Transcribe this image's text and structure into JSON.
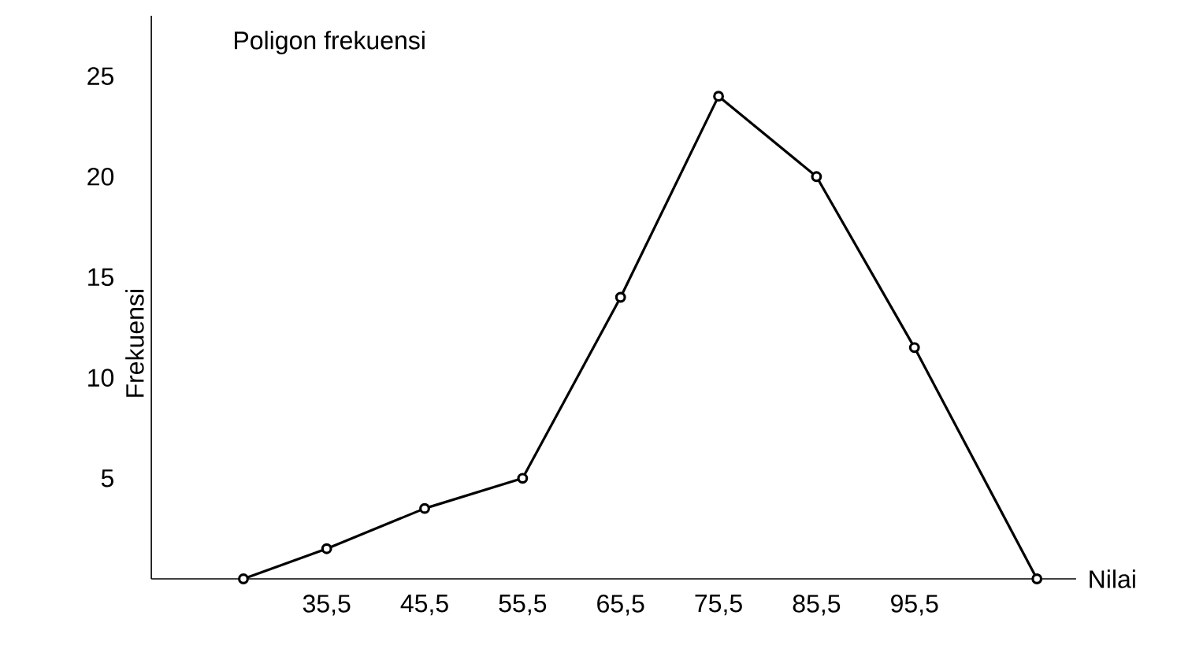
{
  "chart_data": {
    "type": "line",
    "title": "Poligon frekuensi",
    "xlabel": "Nilai",
    "ylabel": "Frekuensi",
    "x": [
      27,
      35.5,
      45.5,
      55.5,
      65.5,
      75.5,
      85.5,
      95.5,
      108
    ],
    "values": [
      0,
      1.5,
      3.5,
      5,
      14,
      24,
      20,
      11.5,
      0
    ],
    "color": "#000000",
    "marker": "circle",
    "line_style": "solid",
    "grid": false,
    "xlim": [
      17.6,
      112
    ],
    "ylim": [
      0,
      28
    ],
    "xticks": [
      {
        "value": 35.5,
        "label": "35,5"
      },
      {
        "value": 45.5,
        "label": "45,5"
      },
      {
        "value": 55.5,
        "label": "55,5"
      },
      {
        "value": 65.5,
        "label": "65,5"
      },
      {
        "value": 75.5,
        "label": "75,5"
      },
      {
        "value": 85.5,
        "label": "85,5"
      },
      {
        "value": 95.5,
        "label": "95,5"
      }
    ],
    "yticks": [
      5,
      10,
      15,
      20,
      25
    ]
  }
}
